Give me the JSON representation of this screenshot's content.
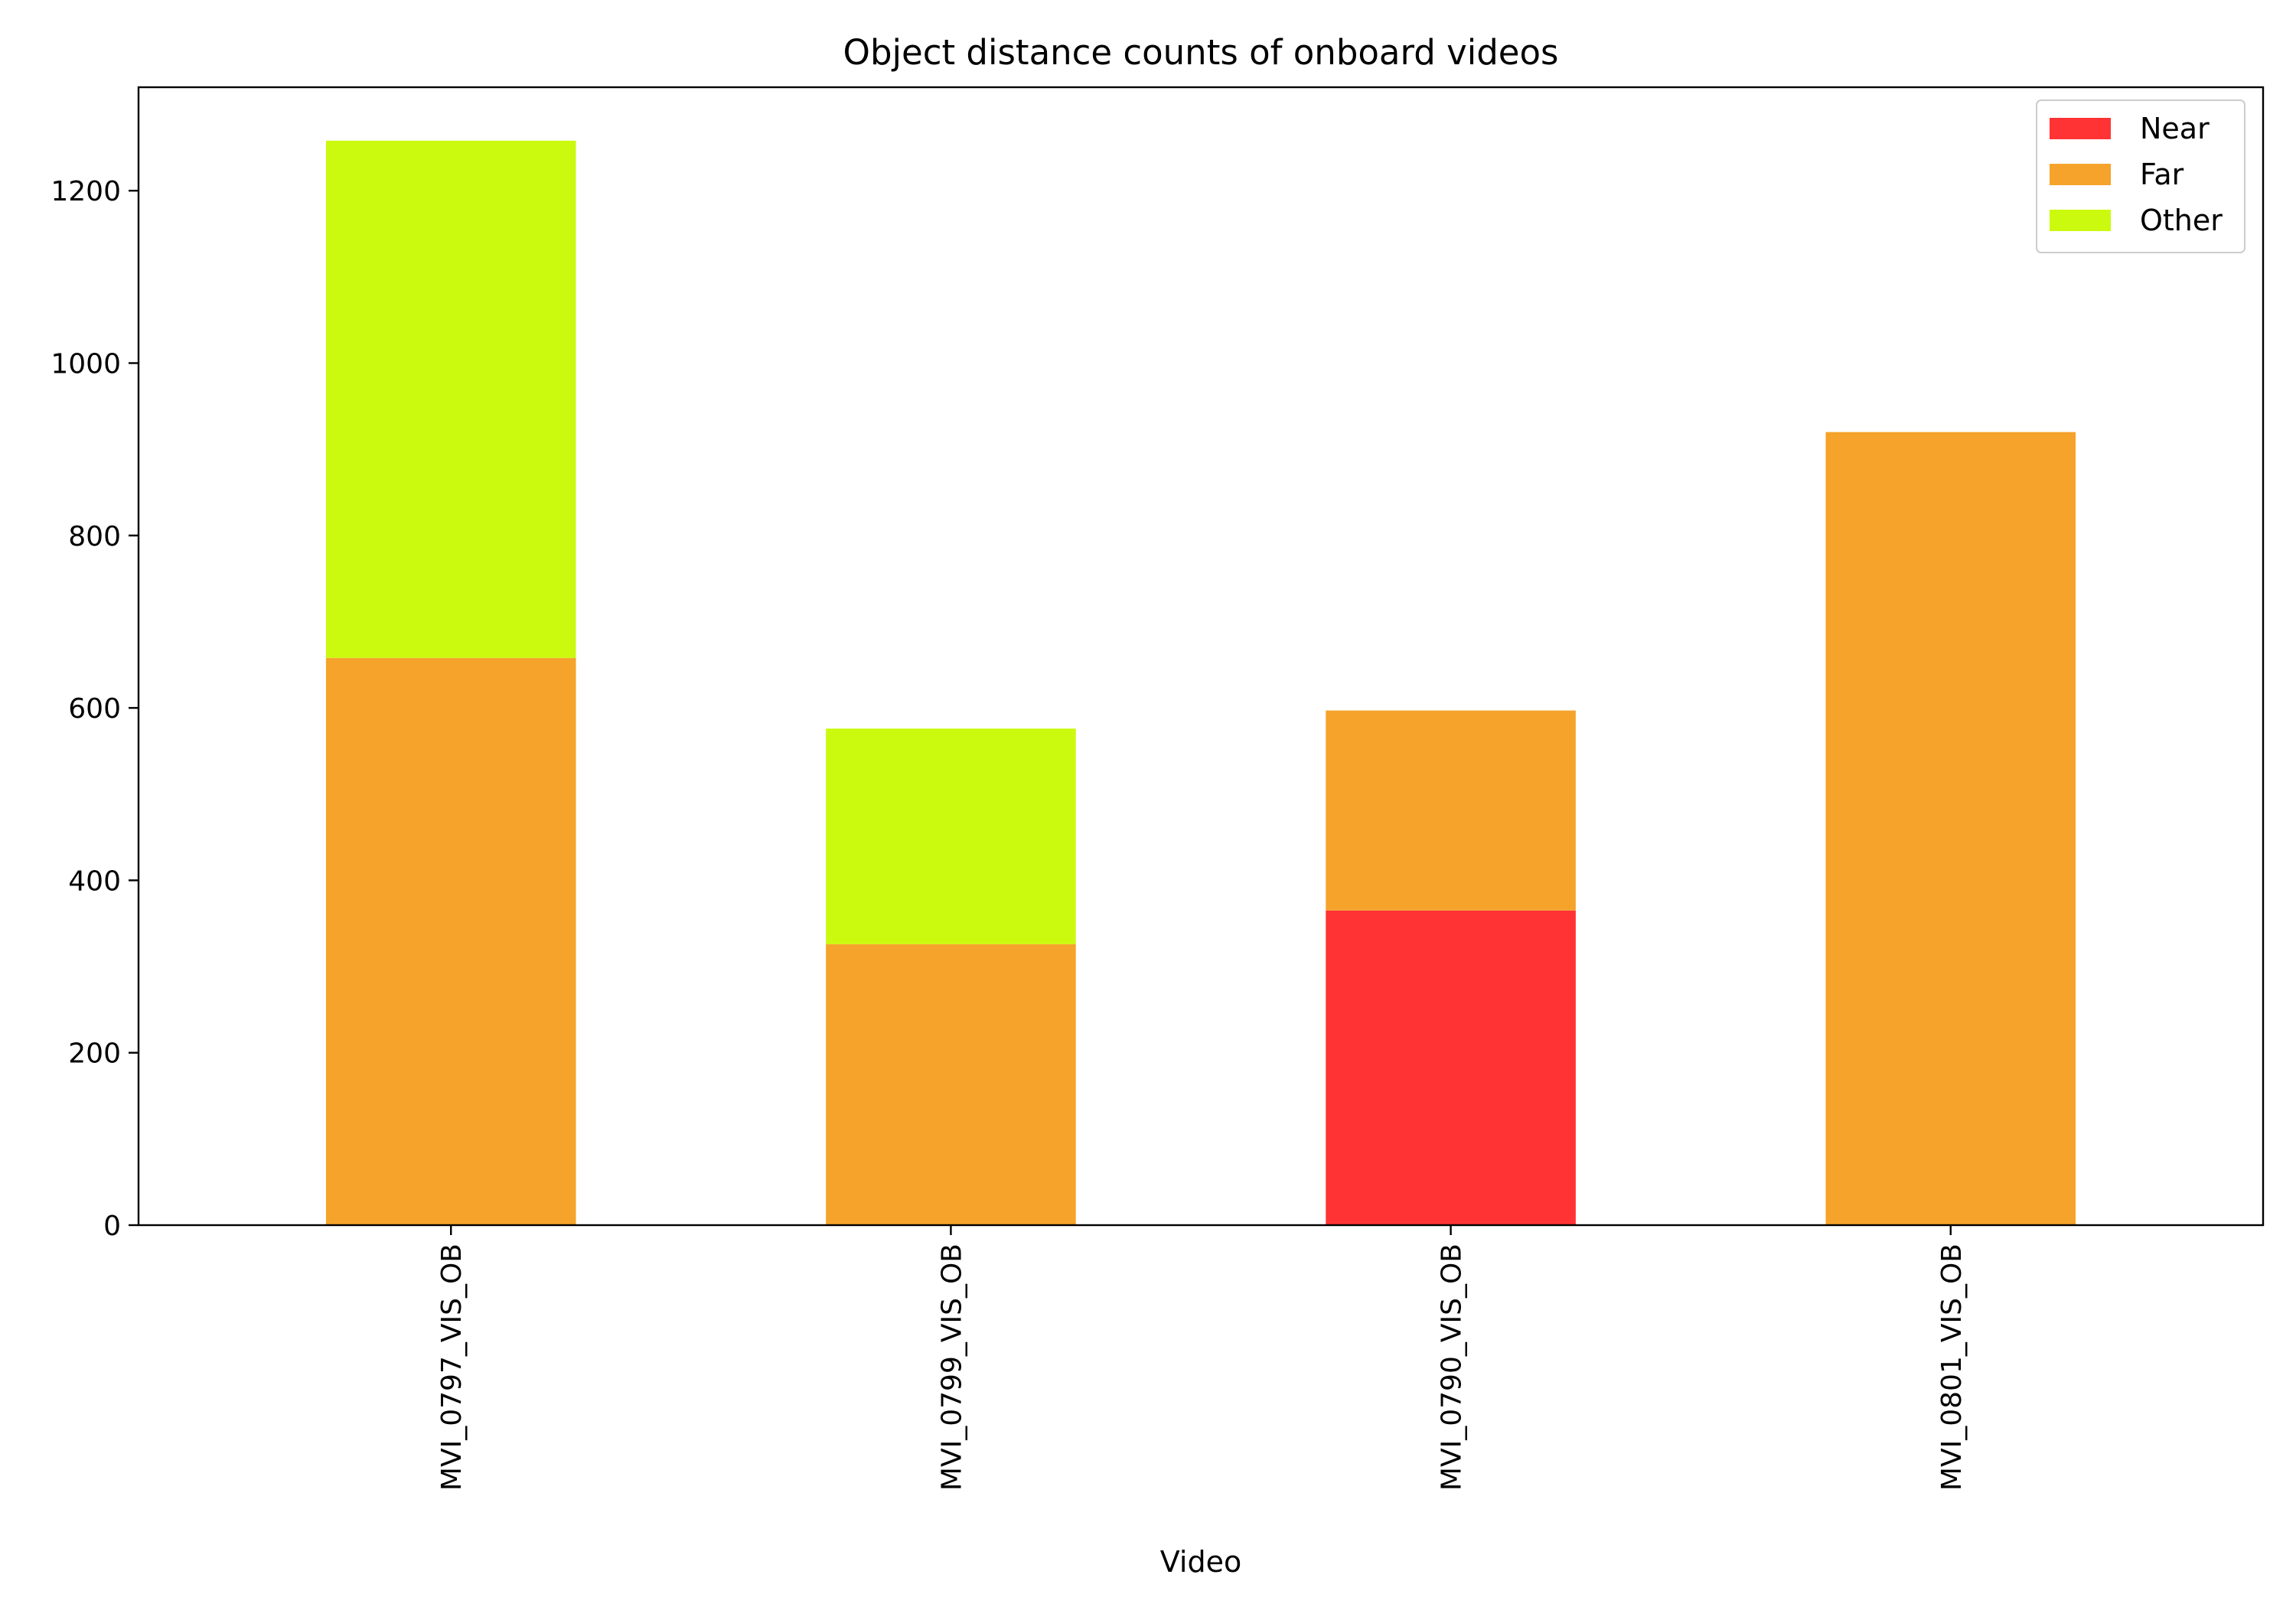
{
  "chart_data": {
    "type": "bar",
    "stacked": true,
    "title": "Object distance counts of onboard videos",
    "xlabel": "Video",
    "ylabel": "",
    "categories": [
      "MVI_0797_VIS_OB",
      "MVI_0799_VIS_OB",
      "MVI_0790_VIS_OB",
      "MVI_0801_VIS_OB"
    ],
    "series": [
      {
        "name": "Near",
        "color": "#ff3333",
        "values": [
          0,
          0,
          365,
          0
        ]
      },
      {
        "name": "Far",
        "color": "#f5a32b",
        "values": [
          658,
          326,
          232,
          920
        ]
      },
      {
        "name": "Other",
        "color": "#cbfa0e",
        "values": [
          600,
          250,
          0,
          0
        ]
      }
    ],
    "ylim": [
      0,
      1320
    ],
    "yticks": [
      0,
      200,
      400,
      600,
      800,
      1000,
      1200
    ],
    "grid": false,
    "legend_position": "top-right"
  }
}
